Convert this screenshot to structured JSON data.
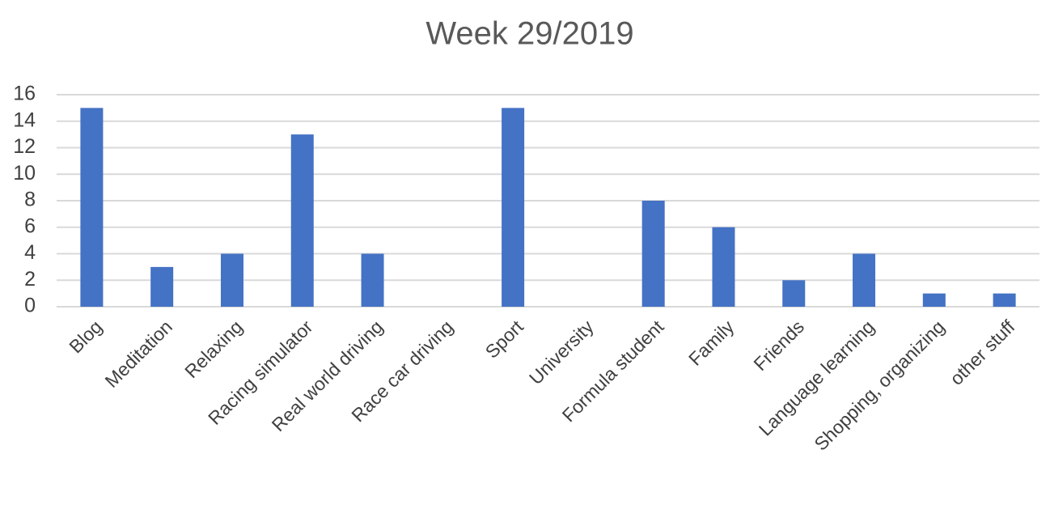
{
  "chart_data": {
    "type": "bar",
    "title": "Week 29/2019",
    "categories": [
      "Blog",
      "Meditation",
      "Relaxing",
      "Racing simulator",
      "Real world driving",
      "Race car driving",
      "Sport",
      "University",
      "Formula student",
      "Family",
      "Friends",
      "Language learning",
      "Shopping, organizing",
      "other stuff"
    ],
    "values": [
      15,
      3,
      4,
      13,
      4,
      0,
      15,
      0,
      8,
      6,
      2,
      4,
      1,
      1
    ],
    "color": "#4472c4",
    "ylim": [
      0,
      16
    ],
    "yticks": [
      0,
      2,
      4,
      6,
      8,
      10,
      12,
      14,
      16
    ],
    "grid": true
  }
}
